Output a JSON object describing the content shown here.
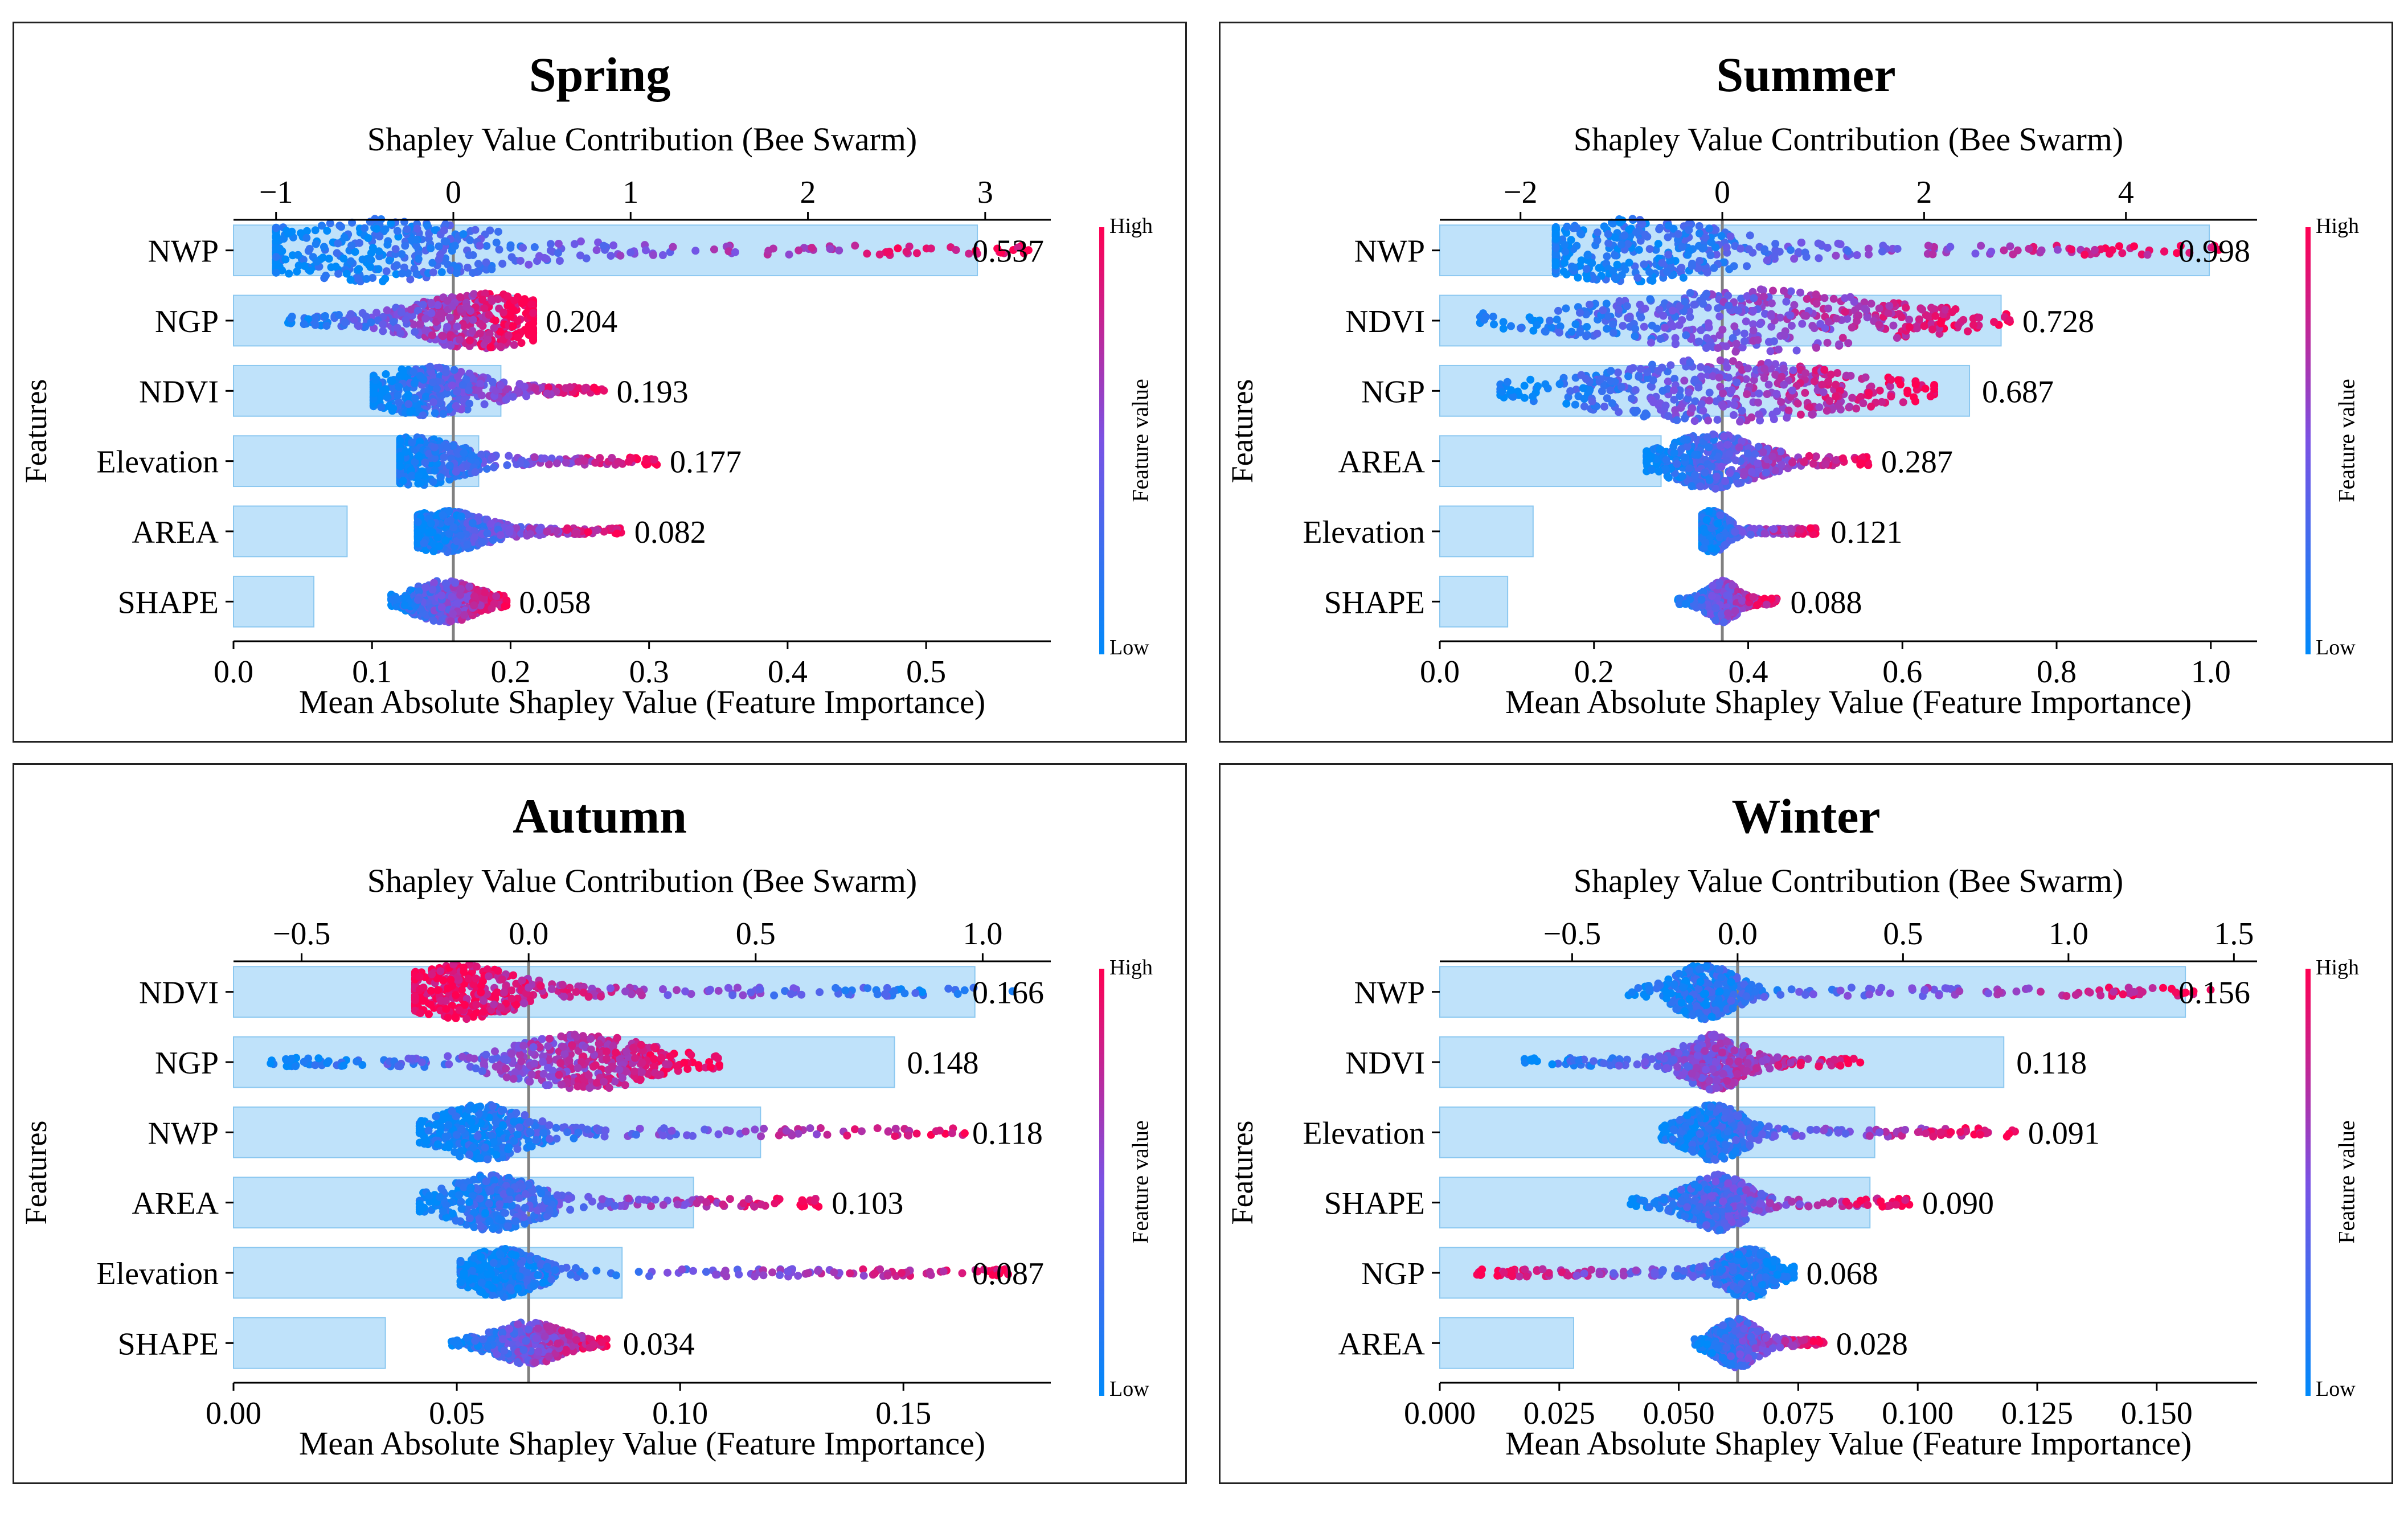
{
  "chart_data": [
    {
      "type": "bar",
      "title": "Spring",
      "top_axis_label": "Shapley Value Contribution (Bee Swarm)",
      "bottom_axis_label": "Mean Absolute Shapley Value (Feature Importance)",
      "ylabel": "Features",
      "colorbar": {
        "label": "Feature value",
        "high": "High",
        "low": "Low"
      },
      "bottom_xlim": [
        0,
        0.59
      ],
      "bottom_ticks": [
        "0.0",
        "0.1",
        "0.2",
        "0.3",
        "0.4",
        "0.5"
      ],
      "bottom_tick_values": [
        0,
        0.1,
        0.2,
        0.3,
        0.4,
        0.5
      ],
      "top_xlim": [
        -1.24,
        3.37
      ],
      "top_ticks": [
        "−1",
        "0",
        "1",
        "2",
        "3"
      ],
      "top_tick_values": [
        -1,
        0,
        1,
        2,
        3
      ],
      "categories": [
        "NWP",
        "NGP",
        "NDVI",
        "Elevation",
        "AREA",
        "SHAPE"
      ],
      "values": [
        0.537,
        0.204,
        0.193,
        0.177,
        0.082,
        0.058
      ],
      "value_labels": [
        "0.537",
        "0.204",
        "0.193",
        "0.177",
        "0.082",
        "0.058"
      ],
      "swarm": [
        {
          "min": -1.0,
          "max": 3.25,
          "center": -0.45,
          "spread": 0.55,
          "height": 0.45,
          "mid": 0.1
        },
        {
          "min": -0.95,
          "max": 0.45,
          "center": 0.15,
          "spread": 0.3,
          "height": 0.4,
          "mid": -0.05
        },
        {
          "min": -0.45,
          "max": 0.85,
          "center": -0.15,
          "spread": 0.25,
          "height": 0.35,
          "mid": 0.0
        },
        {
          "min": -0.3,
          "max": 1.15,
          "center": -0.2,
          "spread": 0.2,
          "height": 0.35,
          "mid": 0.0
        },
        {
          "min": -0.2,
          "max": 0.95,
          "center": -0.05,
          "spread": 0.18,
          "height": 0.3,
          "mid": 0.05
        },
        {
          "min": -0.35,
          "max": 0.3,
          "center": -0.05,
          "spread": 0.15,
          "height": 0.3,
          "mid": 0.0
        }
      ]
    },
    {
      "type": "bar",
      "title": "Summer",
      "top_axis_label": "Shapley Value Contribution (Bee Swarm)",
      "bottom_axis_label": "Mean Absolute Shapley Value (Feature Importance)",
      "ylabel": "Features",
      "colorbar": {
        "label": "Feature value",
        "high": "High",
        "low": "Low"
      },
      "bottom_xlim": [
        0,
        1.06
      ],
      "bottom_ticks": [
        "0.0",
        "0.2",
        "0.4",
        "0.6",
        "0.8",
        "1.0"
      ],
      "bottom_tick_values": [
        0,
        0.2,
        0.4,
        0.6,
        0.8,
        1.0
      ],
      "top_xlim": [
        -2.8,
        5.3
      ],
      "top_ticks": [
        "−2",
        "0",
        "2",
        "4"
      ],
      "top_tick_values": [
        -2,
        0,
        2,
        4
      ],
      "categories": [
        "NWP",
        "NDVI",
        "NGP",
        "AREA",
        "Elevation",
        "SHAPE"
      ],
      "values": [
        0.998,
        0.728,
        0.687,
        0.287,
        0.121,
        0.088
      ],
      "value_labels": [
        "0.998",
        "0.728",
        "0.687",
        "0.287",
        "0.121",
        "0.088"
      ],
      "swarm": [
        {
          "min": -1.65,
          "max": 4.95,
          "center": -0.9,
          "spread": 0.8,
          "height": 0.45,
          "mid": 0.0
        },
        {
          "min": -2.4,
          "max": 2.85,
          "center": 0.3,
          "spread": 1.1,
          "height": 0.45,
          "mid": -0.3
        },
        {
          "min": -2.2,
          "max": 2.1,
          "center": 0.0,
          "spread": 1.0,
          "height": 0.45,
          "mid": -0.2
        },
        {
          "min": -0.75,
          "max": 1.45,
          "center": -0.1,
          "spread": 0.35,
          "height": 0.4,
          "mid": 0.1
        },
        {
          "min": -0.2,
          "max": 0.95,
          "center": -0.1,
          "spread": 0.12,
          "height": 0.3,
          "mid": 0.05
        },
        {
          "min": -0.45,
          "max": 0.55,
          "center": 0.0,
          "spread": 0.12,
          "height": 0.3,
          "mid": 0.0
        }
      ]
    },
    {
      "type": "bar",
      "title": "Autumn",
      "top_axis_label": "Shapley Value Contribution (Bee Swarm)",
      "bottom_axis_label": "Mean Absolute Shapley Value (Feature Importance)",
      "ylabel": "Features",
      "colorbar": {
        "label": "Feature value",
        "high": "High",
        "low": "Low"
      },
      "bottom_xlim": [
        0,
        0.183
      ],
      "bottom_ticks": [
        "0.00",
        "0.05",
        "0.10",
        "0.15"
      ],
      "bottom_tick_values": [
        0,
        0.05,
        0.1,
        0.15
      ],
      "top_xlim": [
        -0.65,
        1.15
      ],
      "top_ticks": [
        "−0.5",
        "0.0",
        "0.5",
        "1.0"
      ],
      "top_tick_values": [
        -0.5,
        0,
        0.5,
        1.0
      ],
      "categories": [
        "NDVI",
        "NGP",
        "NWP",
        "AREA",
        "Elevation",
        "SHAPE"
      ],
      "values": [
        0.166,
        0.148,
        0.118,
        0.103,
        0.087,
        0.034
      ],
      "value_labels": [
        "0.166",
        "0.148",
        "0.118",
        "0.103",
        "0.087",
        "0.034"
      ],
      "swarm": [
        {
          "min": -0.25,
          "max": 1.08,
          "center": -0.15,
          "spread": 0.1,
          "height": 0.4,
          "mid": 0.0,
          "reverse": true
        },
        {
          "min": -0.57,
          "max": 0.42,
          "center": 0.12,
          "spread": 0.12,
          "height": 0.4,
          "mid": 0.0
        },
        {
          "min": -0.24,
          "max": 0.98,
          "center": -0.1,
          "spread": 0.08,
          "height": 0.4,
          "mid": 0.0
        },
        {
          "min": -0.24,
          "max": 0.64,
          "center": -0.08,
          "spread": 0.08,
          "height": 0.4,
          "mid": 0.0
        },
        {
          "min": -0.15,
          "max": 1.06,
          "center": -0.06,
          "spread": 0.06,
          "height": 0.35,
          "mid": 0.0
        },
        {
          "min": -0.17,
          "max": 0.18,
          "center": 0.0,
          "spread": 0.06,
          "height": 0.3,
          "mid": 0.0
        }
      ]
    },
    {
      "type": "bar",
      "title": "Winter",
      "top_axis_label": "Shapley Value Contribution (Bee Swarm)",
      "bottom_axis_label": "Mean Absolute Shapley Value (Feature Importance)",
      "ylabel": "Features",
      "colorbar": {
        "label": "Feature value",
        "high": "High",
        "low": "Low"
      },
      "bottom_xlim": [
        0,
        0.171
      ],
      "bottom_ticks": [
        "0.000",
        "0.025",
        "0.050",
        "0.075",
        "0.100",
        "0.125",
        "0.150"
      ],
      "bottom_tick_values": [
        0,
        0.025,
        0.05,
        0.075,
        0.1,
        0.125,
        0.15
      ],
      "top_xlim": [
        -0.9,
        1.57
      ],
      "top_ticks": [
        "−0.5",
        "0.0",
        "0.5",
        "1.0",
        "1.5"
      ],
      "top_tick_values": [
        -0.5,
        0,
        0.5,
        1.0,
        1.5
      ],
      "categories": [
        "NWP",
        "NDVI",
        "Elevation",
        "SHAPE",
        "NGP",
        "AREA"
      ],
      "values": [
        0.156,
        0.118,
        0.091,
        0.09,
        0.068,
        0.028
      ],
      "value_labels": [
        "0.156",
        "0.118",
        "0.091",
        "0.090",
        "0.068",
        "0.028"
      ],
      "swarm": [
        {
          "min": -0.34,
          "max": 1.43,
          "center": -0.1,
          "spread": 0.07,
          "height": 0.4,
          "mid": 0.0
        },
        {
          "min": -0.66,
          "max": 0.39,
          "center": -0.07,
          "spread": 0.07,
          "height": 0.4,
          "mid": 0.0
        },
        {
          "min": -0.23,
          "max": 0.84,
          "center": -0.07,
          "spread": 0.07,
          "height": 0.4,
          "mid": 0.0
        },
        {
          "min": -0.33,
          "max": 0.52,
          "center": -0.06,
          "spread": 0.07,
          "height": 0.4,
          "mid": 0.0
        },
        {
          "min": -0.8,
          "max": 0.17,
          "center": 0.03,
          "spread": 0.06,
          "height": 0.35,
          "mid": 0.0,
          "reverse": true
        },
        {
          "min": -0.13,
          "max": 0.26,
          "center": 0.0,
          "spread": 0.05,
          "height": 0.35,
          "mid": 0.0
        }
      ]
    }
  ]
}
